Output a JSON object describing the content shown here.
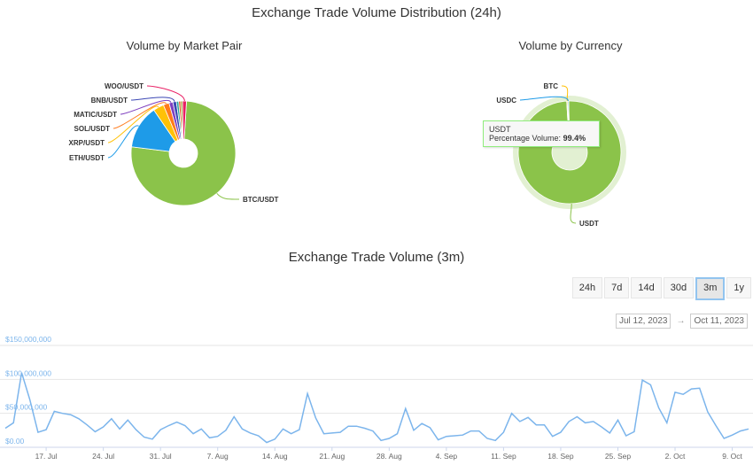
{
  "page": {
    "title": "Exchange Trade Volume Distribution (24h)",
    "volume_title": "Exchange Trade Volume (3m)"
  },
  "colors": {
    "green": "#8bc34a",
    "blue": "#1e9be8",
    "line": "#7cb5ec",
    "grid": "#e6e6e6"
  },
  "range": {
    "buttons": [
      "24h",
      "7d",
      "14d",
      "30d",
      "3m",
      "1y"
    ],
    "active": "3m",
    "from": "Jul 12, 2023",
    "to": "Oct 11, 2023",
    "arrow": "→"
  },
  "tooltip": {
    "name": "USDT",
    "label": "Percentage Volume:",
    "value": "99.4%"
  },
  "chart_data": [
    {
      "type": "pie",
      "title": "Volume by Market Pair",
      "slices": [
        {
          "label": "BTC/USDT",
          "value": 76.0,
          "color": "#8bc34a"
        },
        {
          "label": "ETH/USDT",
          "value": 13.5,
          "color": "#1e9be8"
        },
        {
          "label": "XRP/USDT",
          "value": 3.3,
          "color": "#ffc107"
        },
        {
          "label": "SOL/USDT",
          "value": 1.8,
          "color": "#ff7a1a"
        },
        {
          "label": "MATIC/USDT",
          "value": 1.2,
          "color": "#7e3fbf"
        },
        {
          "label": "BNB/USDT",
          "value": 1.1,
          "color": "#3b47b4"
        },
        {
          "label": "",
          "value": 0.7,
          "color": "#26a69a"
        },
        {
          "label": "",
          "value": 0.6,
          "color": "#e64a19"
        },
        {
          "label": "",
          "value": 0.6,
          "color": "#9e9d24"
        },
        {
          "label": "WOO/USDT",
          "value": 1.2,
          "color": "#e91e63"
        }
      ]
    },
    {
      "type": "pie",
      "title": "Volume by Currency",
      "slices": [
        {
          "label": "USDT",
          "value": 99.4,
          "color": "#8bc34a"
        },
        {
          "label": "BTC",
          "value": 0.3,
          "color": "#ffc107"
        },
        {
          "label": "USDC",
          "value": 0.3,
          "color": "#1e9be8"
        }
      ]
    },
    {
      "type": "line",
      "title": "Exchange Trade Volume (3m)",
      "x_start": "2023-07-12",
      "x_step": "1 day",
      "xticks": [
        "17. Jul",
        "24. Jul",
        "31. Jul",
        "7. Aug",
        "14. Aug",
        "21. Aug",
        "28. Aug",
        "4. Sep",
        "11. Sep",
        "18. Sep",
        "25. Sep",
        "2. Oct",
        "9. Oct"
      ],
      "yticks": [
        "$0.00",
        "$50,000,000",
        "$100,000,000",
        "$150,000,000"
      ],
      "ylim": [
        0,
        150000000
      ],
      "values": [
        28000000,
        36000000,
        110000000,
        70000000,
        22000000,
        26000000,
        53000000,
        50000000,
        48000000,
        42000000,
        33000000,
        23000000,
        30000000,
        42000000,
        27000000,
        40000000,
        26000000,
        15000000,
        12000000,
        26000000,
        32000000,
        37000000,
        32000000,
        20000000,
        27000000,
        14000000,
        16000000,
        25000000,
        45000000,
        27000000,
        21000000,
        17000000,
        7000000,
        12000000,
        27000000,
        20000000,
        26000000,
        79000000,
        43000000,
        20000000,
        21000000,
        22000000,
        31000000,
        31000000,
        28000000,
        24000000,
        10000000,
        13000000,
        20000000,
        57000000,
        25000000,
        35000000,
        29000000,
        11000000,
        16000000,
        17000000,
        18000000,
        24000000,
        24000000,
        13000000,
        10000000,
        22000000,
        50000000,
        38000000,
        44000000,
        33000000,
        33000000,
        16000000,
        22000000,
        38000000,
        45000000,
        36000000,
        38000000,
        30000000,
        21000000,
        40000000,
        17000000,
        23000000,
        99000000,
        92000000,
        58000000,
        36000000,
        81000000,
        78000000,
        86000000,
        87000000,
        52000000,
        32000000,
        13000000,
        18000000,
        24000000,
        27000000
      ]
    }
  ]
}
